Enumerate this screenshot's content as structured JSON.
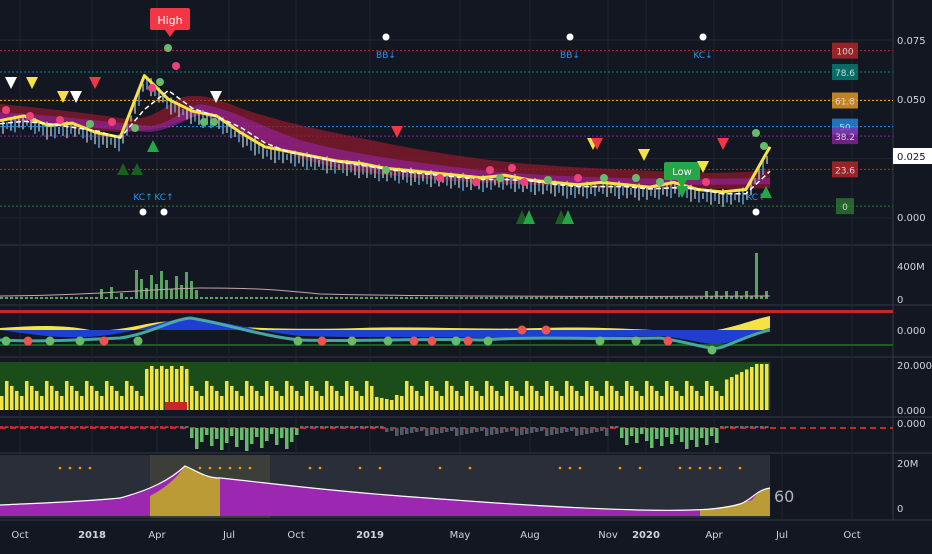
{
  "colors": {
    "bg": "#131722",
    "grid": "#1f2430",
    "text": "#d1d4dc",
    "red_line": "#c62828",
    "green_line": "#26a69a",
    "yellow": "#f5e346",
    "blue": "#2962ff",
    "purple": "#9c27b0"
  },
  "price_scale": {
    "labels": [
      "0.075",
      "0.050",
      "0.025",
      "0.000"
    ],
    "current": "0.025"
  },
  "fib_levels": [
    {
      "label": "100",
      "value": 0.0705,
      "color": "#c62828"
    },
    {
      "label": "78.6",
      "value": 0.0615,
      "color": "#00897b"
    },
    {
      "label": "61.8",
      "value": 0.0495,
      "color": "#f9a825"
    },
    {
      "label": "50",
      "value": 0.0385,
      "color": "#2196f3"
    },
    {
      "label": "38.2",
      "value": 0.0345,
      "color": "#8e24aa"
    },
    {
      "label": "23.6",
      "value": 0.0205,
      "color": "#c62828"
    },
    {
      "label": "0",
      "value": 0.005,
      "color": "#2e7d32"
    }
  ],
  "markers": {
    "high_label": "High",
    "low_label": "Low",
    "bb_down": [
      "BB↓",
      "BB↓"
    ],
    "kc_down": "KC↓",
    "kc_up": [
      "KC↑",
      "KC↑",
      "KC↑"
    ]
  },
  "volume_scale": [
    "400M",
    "0"
  ],
  "osc_scale": [
    "0.000"
  ],
  "hist_scale": [
    "20.000",
    "0.000"
  ],
  "macd_scale": [
    "0.000"
  ],
  "obv_scale": [
    "20M",
    "0"
  ],
  "obv_value": "60",
  "time_axis": [
    "Oct",
    "2018",
    "Apr",
    "Jul",
    "Oct",
    "2019",
    "May",
    "Aug",
    "Nov",
    "2020",
    "Apr",
    "Jul",
    "Oct"
  ],
  "chart_data": {
    "type": "line",
    "title": "",
    "xlabel": "",
    "ylabel": "",
    "ylim": [
      -0.005,
      0.08
    ],
    "x": [
      "2017-10",
      "2017-11",
      "2017-12",
      "2018-01",
      "2018-02",
      "2018-03",
      "2018-04",
      "2018-05",
      "2018-06",
      "2018-07",
      "2018-08",
      "2018-09",
      "2018-10",
      "2018-11",
      "2018-12",
      "2019-01",
      "2019-02",
      "2019-03",
      "2019-04",
      "2019-05",
      "2019-06",
      "2019-07",
      "2019-08",
      "2019-09",
      "2019-10",
      "2019-11",
      "2019-12",
      "2020-01",
      "2020-02",
      "2020-03",
      "2020-04",
      "2020-05",
      "2020-06"
    ],
    "series": [
      {
        "values": [
          0.041,
          0.043,
          0.039,
          0.04,
          0.036,
          0.034,
          0.06,
          0.05,
          0.045,
          0.043,
          0.036,
          0.03,
          0.028,
          0.026,
          0.024,
          0.023,
          0.021,
          0.02,
          0.019,
          0.018,
          0.017,
          0.018,
          0.016,
          0.015,
          0.014,
          0.015,
          0.014,
          0.013,
          0.015,
          0.012,
          0.011,
          0.012,
          0.03
        ]
      }
    ]
  }
}
